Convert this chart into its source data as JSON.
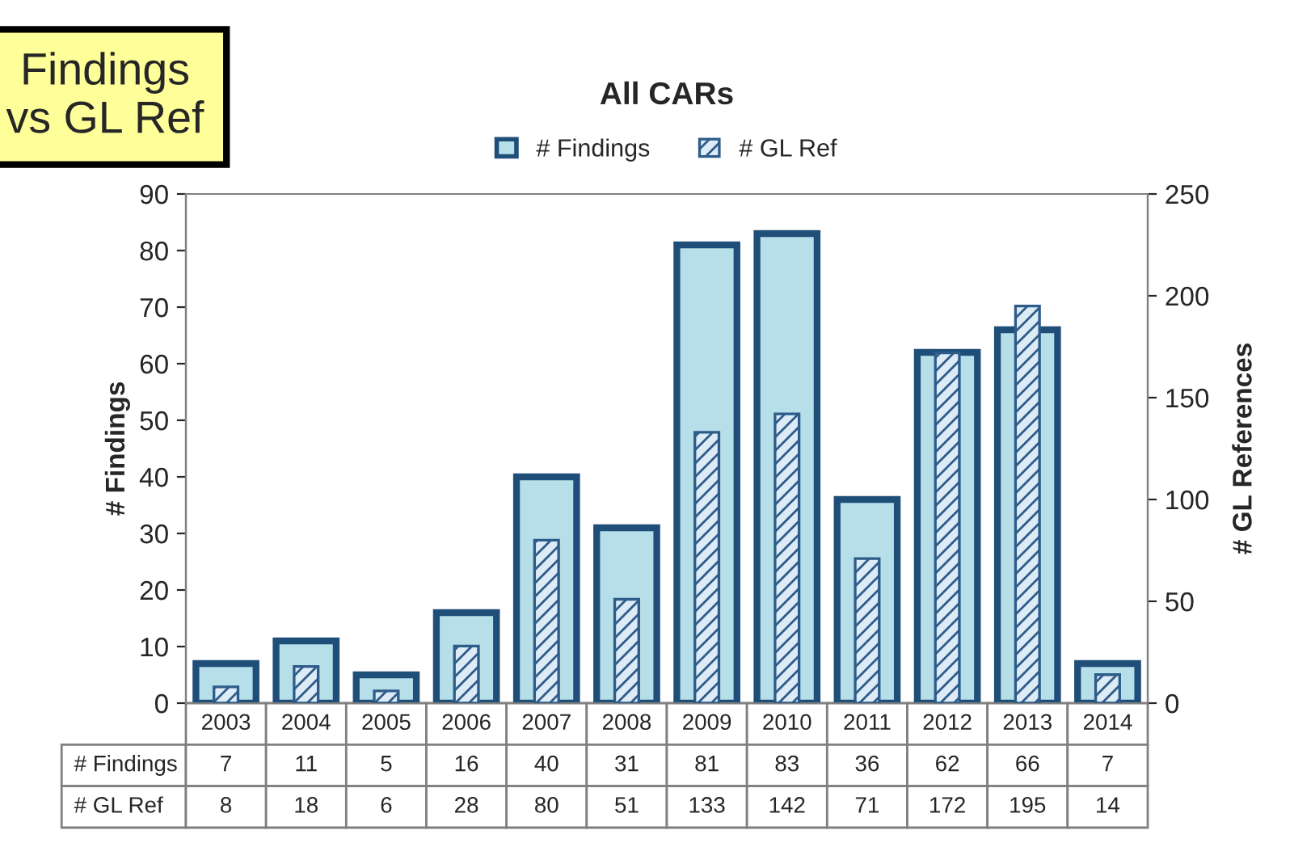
{
  "chart_data": {
    "type": "bar",
    "title": "All CARs",
    "ylabel": "# Findings",
    "y2label": "# GL References",
    "annotations": [
      "Findings vs GL Ref"
    ],
    "categories": [
      "2003",
      "2004",
      "2005",
      "2006",
      "2007",
      "2008",
      "2009",
      "2010",
      "2011",
      "2012",
      "2013",
      "2014"
    ],
    "series": [
      {
        "name": "# Findings",
        "color": "#b7dfe9",
        "values": [
          7,
          11,
          5,
          16,
          40,
          31,
          81,
          83,
          36,
          62,
          66,
          7
        ]
      },
      {
        "name": "# GL Ref",
        "color": "#2e5c8a",
        "axis": "y2",
        "values": [
          8,
          18,
          6,
          28,
          80,
          51,
          133,
          142,
          71,
          172,
          195,
          14
        ]
      }
    ],
    "ylim": [
      0,
      90
    ],
    "yticks": [
      0,
      10,
      20,
      30,
      40,
      50,
      60,
      70,
      80,
      90
    ],
    "y2lim": [
      0,
      250
    ],
    "y2ticks": [
      0,
      50,
      100,
      150,
      200,
      250
    ],
    "legend": "top",
    "data_labels": true
  }
}
